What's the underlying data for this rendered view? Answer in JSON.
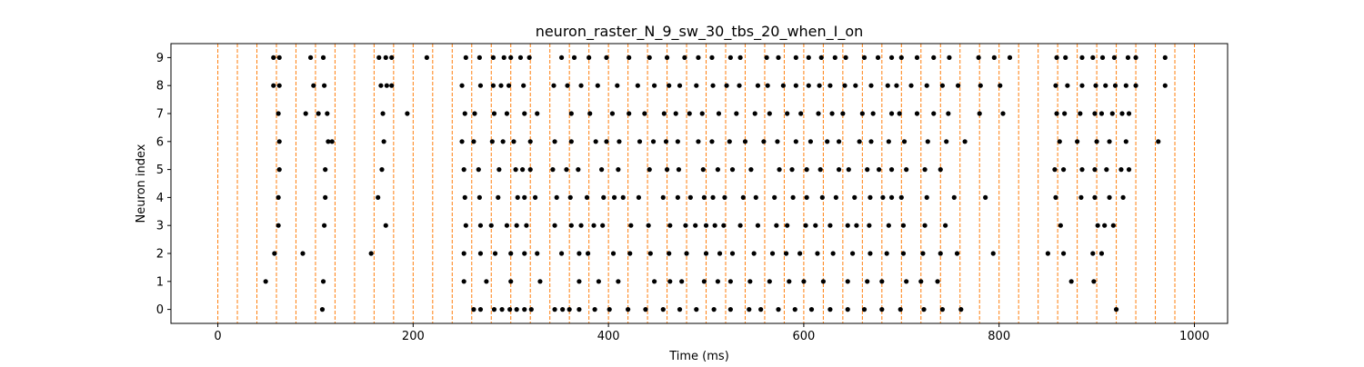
{
  "chart_data": {
    "type": "scatter",
    "title": "neuron_raster_N_9_sw_30_tbs_20_when_I_on",
    "xlabel": "Time (ms)",
    "ylabel": "Neuron index",
    "xlim": [
      -48,
      1034
    ],
    "ylim": [
      -0.5,
      9.5
    ],
    "x_ticks": [
      0,
      200,
      400,
      600,
      800,
      1000
    ],
    "y_ticks": [
      0,
      1,
      2,
      3,
      4,
      5,
      6,
      7,
      8,
      9
    ],
    "grid": false,
    "legend": "none",
    "vlines": [
      0,
      20,
      40,
      60,
      80,
      100,
      120,
      140,
      160,
      180,
      200,
      220,
      240,
      260,
      280,
      300,
      320,
      340,
      360,
      380,
      400,
      420,
      440,
      460,
      480,
      500,
      520,
      540,
      560,
      580,
      600,
      620,
      640,
      660,
      680,
      700,
      720,
      740,
      760,
      780,
      800,
      820,
      840,
      860,
      880,
      900,
      920,
      940,
      960,
      980,
      1000
    ],
    "vline_color": "#ff7f0e",
    "marker_color": "#000000",
    "series": [
      {
        "neuron": 0,
        "spikes": [
          107,
          262,
          269,
          283,
          291,
          299,
          306,
          314,
          321,
          345,
          353,
          360,
          370,
          386,
          401,
          420,
          438,
          456,
          473,
          490,
          508,
          525,
          544,
          556,
          574,
          591,
          608,
          627,
          645,
          662,
          680,
          699,
          723,
          742,
          761,
          920
        ]
      },
      {
        "neuron": 1,
        "spikes": [
          49,
          108,
          252,
          275,
          300,
          330,
          370,
          390,
          410,
          447,
          463,
          475,
          498,
          512,
          525,
          545,
          565,
          585,
          600,
          620,
          645,
          665,
          680,
          705,
          720,
          737,
          874,
          897
        ]
      },
      {
        "neuron": 2,
        "spikes": [
          58,
          87,
          157,
          252,
          269,
          284,
          300,
          314,
          327,
          352,
          370,
          379,
          405,
          422,
          443,
          462,
          480,
          500,
          514,
          527,
          549,
          568,
          582,
          596,
          614,
          630,
          650,
          668,
          685,
          702,
          722,
          740,
          757,
          794,
          850,
          866,
          896,
          905
        ]
      },
      {
        "neuron": 3,
        "spikes": [
          62,
          109,
          172,
          254,
          269,
          280,
          296,
          306,
          316,
          345,
          362,
          372,
          385,
          394,
          423,
          441,
          463,
          479,
          489,
          500,
          509,
          518,
          535,
          553,
          572,
          583,
          602,
          612,
          627,
          645,
          654,
          667,
          687,
          702,
          724,
          745,
          863,
          901,
          908,
          917
        ]
      },
      {
        "neuron": 4,
        "spikes": [
          62,
          110,
          164,
          253,
          268,
          287,
          307,
          314,
          325,
          347,
          361,
          378,
          395,
          406,
          415,
          431,
          456,
          471,
          484,
          498,
          507,
          519,
          538,
          551,
          570,
          589,
          603,
          619,
          633,
          652,
          668,
          681,
          690,
          700,
          726,
          754,
          786,
          858,
          884,
          898,
          913,
          927
        ]
      },
      {
        "neuron": 5,
        "spikes": [
          63,
          110,
          168,
          252,
          267,
          288,
          305,
          312,
          320,
          343,
          357,
          369,
          393,
          410,
          442,
          460,
          472,
          497,
          512,
          527,
          546,
          575,
          588,
          603,
          617,
          636,
          646,
          665,
          677,
          690,
          705,
          724,
          740,
          857,
          866,
          885,
          898,
          910,
          925,
          933
        ]
      },
      {
        "neuron": 6,
        "spikes": [
          63,
          113,
          117,
          170,
          250,
          262,
          281,
          292,
          303,
          320,
          345,
          362,
          387,
          398,
          411,
          432,
          446,
          459,
          471,
          492,
          506,
          524,
          540,
          559,
          573,
          592,
          607,
          624,
          636,
          657,
          669,
          687,
          703,
          727,
          746,
          765,
          862,
          880,
          900,
          913,
          930,
          963
        ]
      },
      {
        "neuron": 7,
        "spikes": [
          62,
          90,
          103,
          112,
          169,
          194,
          253,
          263,
          283,
          296,
          314,
          327,
          362,
          381,
          404,
          421,
          437,
          457,
          469,
          483,
          496,
          513,
          531,
          550,
          565,
          583,
          597,
          615,
          629,
          640,
          660,
          671,
          690,
          698,
          716,
          733,
          748,
          780,
          804,
          859,
          867,
          883,
          898,
          905,
          916,
          926,
          933
        ]
      },
      {
        "neuron": 8,
        "spikes": [
          57,
          63,
          98,
          109,
          167,
          173,
          178,
          250,
          269,
          282,
          290,
          298,
          313,
          344,
          358,
          372,
          389,
          409,
          430,
          447,
          462,
          473,
          490,
          507,
          521,
          534,
          553,
          563,
          579,
          592,
          605,
          616,
          627,
          642,
          653,
          669,
          686,
          695,
          710,
          726,
          742,
          758,
          781,
          801,
          858,
          870,
          885,
          899,
          909,
          919,
          930,
          940,
          970
        ]
      },
      {
        "neuron": 9,
        "spikes": [
          57,
          63,
          95,
          108,
          165,
          172,
          178,
          214,
          254,
          268,
          282,
          293,
          300,
          310,
          319,
          352,
          365,
          380,
          398,
          421,
          442,
          460,
          478,
          492,
          506,
          525,
          535,
          562,
          574,
          592,
          605,
          618,
          632,
          643,
          662,
          676,
          690,
          700,
          716,
          733,
          749,
          779,
          795,
          811,
          859,
          868,
          885,
          896,
          906,
          918,
          932,
          940,
          970
        ]
      }
    ]
  }
}
